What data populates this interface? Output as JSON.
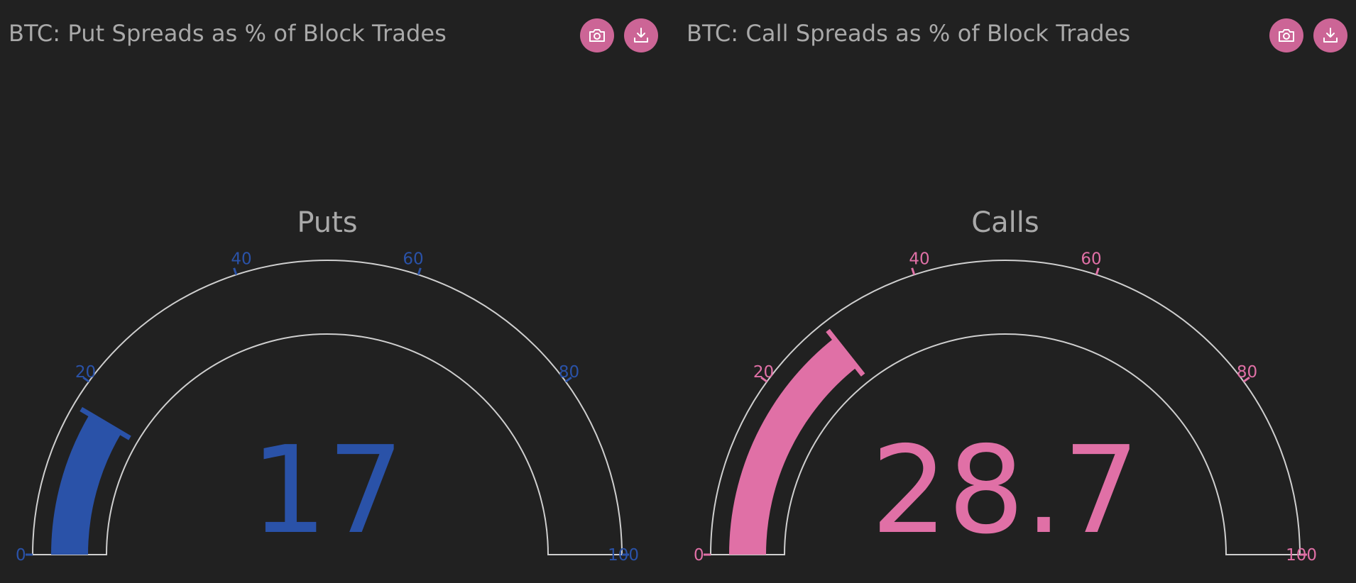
{
  "panels": [
    {
      "title": "BTC: Put Spreads as % of Block Trades",
      "toolbar": {
        "camera_icon": "camera-icon",
        "download_icon": "download-icon"
      }
    },
    {
      "title": "BTC: Call Spreads as % of Block Trades",
      "toolbar": {
        "camera_icon": "camera-icon",
        "download_icon": "download-icon"
      }
    }
  ],
  "colors": {
    "background": "#212121",
    "text": "#a9a9a9",
    "button": "#cc6596",
    "gauge_outline": "#cfcfcf",
    "puts": "#2a52a8",
    "calls": "#e070a6"
  },
  "chart_data": [
    {
      "type": "gauge",
      "title": "Puts",
      "value": 17,
      "value_label": "17",
      "range": [
        0,
        100
      ],
      "ticks": [
        0,
        20,
        40,
        60,
        80,
        100
      ],
      "tick_labels": [
        "0",
        "20",
        "40",
        "60",
        "80",
        "100"
      ],
      "color": "#2a52a8"
    },
    {
      "type": "gauge",
      "title": "Calls",
      "value": 28.7,
      "value_label": "28.7",
      "range": [
        0,
        100
      ],
      "ticks": [
        0,
        20,
        40,
        60,
        80,
        100
      ],
      "tick_labels": [
        "0",
        "20",
        "40",
        "60",
        "80",
        "100"
      ],
      "color": "#e070a6"
    }
  ]
}
